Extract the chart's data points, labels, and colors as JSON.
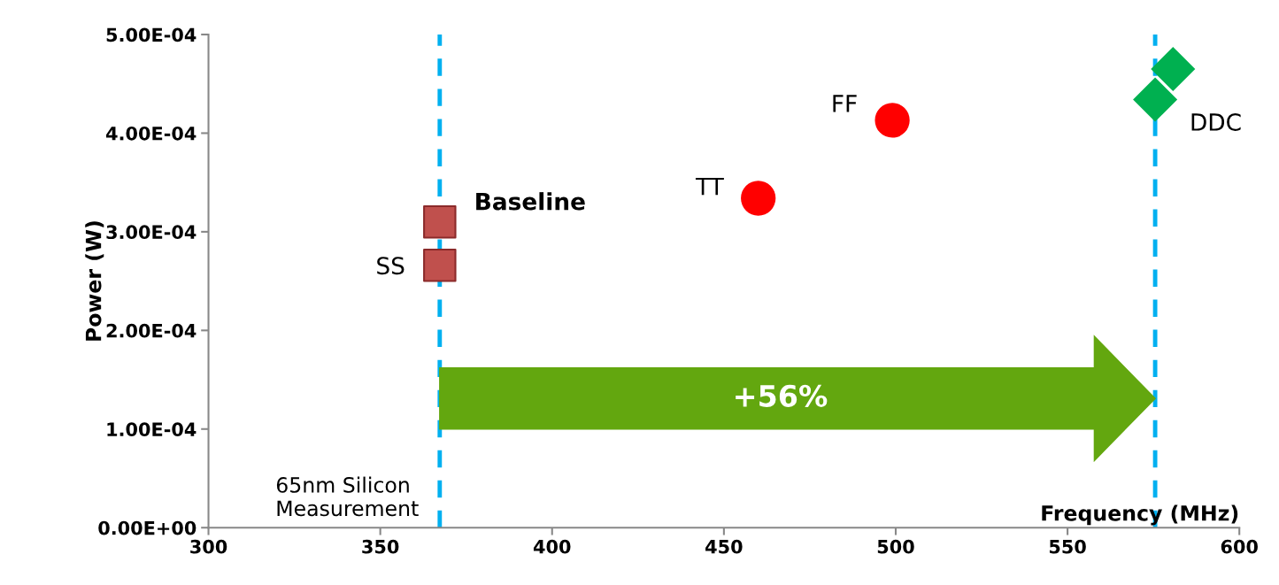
{
  "chart_data": {
    "type": "scatter",
    "xlabel": "Frequency (MHz)",
    "ylabel": "Power (W)",
    "xlim": [
      300,
      600
    ],
    "xticks": [
      300,
      350,
      400,
      450,
      500,
      550,
      600
    ],
    "ylim": [
      0,
      0.0005
    ],
    "yticks": [
      {
        "value": 0,
        "label": "0.00E+00"
      },
      {
        "value": 0.0001,
        "label": "1.00E-04"
      },
      {
        "value": 0.0002,
        "label": "2.00E-04"
      },
      {
        "value": 0.0003,
        "label": "3.00E-04"
      },
      {
        "value": 0.0004,
        "label": "4.00E-04"
      },
      {
        "value": 0.0005,
        "label": "5.00E-04"
      }
    ],
    "grid": false,
    "legend": false,
    "series": [
      {
        "color": "#c0504d",
        "marker": "square",
        "x": [
          367.3,
          367.3
        ],
        "values": [
          0.00031,
          0.000266
        ]
      },
      {
        "color": "#ff0000",
        "marker": "circle",
        "x": [
          460,
          499
        ],
        "values": [
          0.000334,
          0.000413
        ]
      },
      {
        "color": "#00b050",
        "marker": "diamond",
        "x": [
          575.5,
          580.7
        ],
        "values": [
          0.000434,
          0.000465
        ]
      }
    ],
    "ref_lines": [
      {
        "axis": "x",
        "value": 367.3,
        "color": "#00b0f0",
        "line_style": "dashed"
      },
      {
        "axis": "x",
        "value": 575.5,
        "color": "#00b0f0",
        "line_style": "dashed"
      }
    ],
    "annotations": [
      {
        "text": "Baseline",
        "x": 367.3,
        "y": 0.00031
      },
      {
        "text": "SS",
        "x": 367.3,
        "y": 0.000266
      },
      {
        "text": "TT",
        "x": 460,
        "y": 0.000334
      },
      {
        "text": "FF",
        "x": 499,
        "y": 0.000413
      },
      {
        "text": "DDC",
        "x": 575.5,
        "y": 0.000434
      },
      "+56%",
      "65nm Silicon\nMeasurement"
    ]
  }
}
